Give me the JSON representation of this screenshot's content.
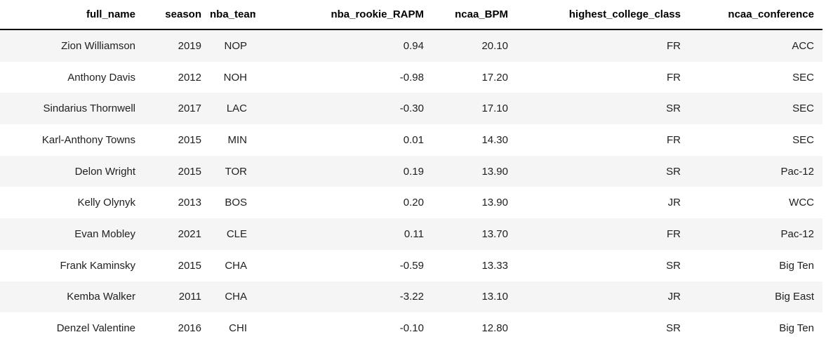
{
  "table": {
    "columns": [
      "full_name",
      "season",
      "nba_team",
      "nba_rookie_RAPM",
      "ncaa_BPM",
      "highest_college_class",
      "ncaa_conference"
    ],
    "rows": [
      {
        "cells": [
          "Zion Williamson",
          "2019",
          "NOP",
          "0.94",
          "20.10",
          "FR",
          "ACC"
        ]
      },
      {
        "cells": [
          "Anthony Davis",
          "2012",
          "NOH",
          "-0.98",
          "17.20",
          "FR",
          "SEC"
        ]
      },
      {
        "cells": [
          "Sindarius Thornwell",
          "2017",
          "LAC",
          "-0.30",
          "17.10",
          "SR",
          "SEC"
        ]
      },
      {
        "cells": [
          "Karl-Anthony Towns",
          "2015",
          "MIN",
          "0.01",
          "14.30",
          "FR",
          "SEC"
        ]
      },
      {
        "cells": [
          "Delon Wright",
          "2015",
          "TOR",
          "0.19",
          "13.90",
          "SR",
          "Pac-12"
        ]
      },
      {
        "cells": [
          "Kelly Olynyk",
          "2013",
          "BOS",
          "0.20",
          "13.90",
          "JR",
          "WCC"
        ]
      },
      {
        "cells": [
          "Evan Mobley",
          "2021",
          "CLE",
          "0.11",
          "13.70",
          "FR",
          "Pac-12"
        ]
      },
      {
        "cells": [
          "Frank Kaminsky",
          "2015",
          "CHA",
          "-0.59",
          "13.33",
          "SR",
          "Big Ten"
        ]
      },
      {
        "cells": [
          "Kemba Walker",
          "2011",
          "CHA",
          "-3.22",
          "13.10",
          "JR",
          "Big East"
        ]
      },
      {
        "cells": [
          "Denzel Valentine",
          "2016",
          "CHI",
          "-0.10",
          "12.80",
          "SR",
          "Big Ten"
        ]
      }
    ]
  },
  "colors": {
    "row_stripe": "#f5f5f5",
    "header_border": "#000000",
    "text": "#212121",
    "background": "#ffffff"
  }
}
